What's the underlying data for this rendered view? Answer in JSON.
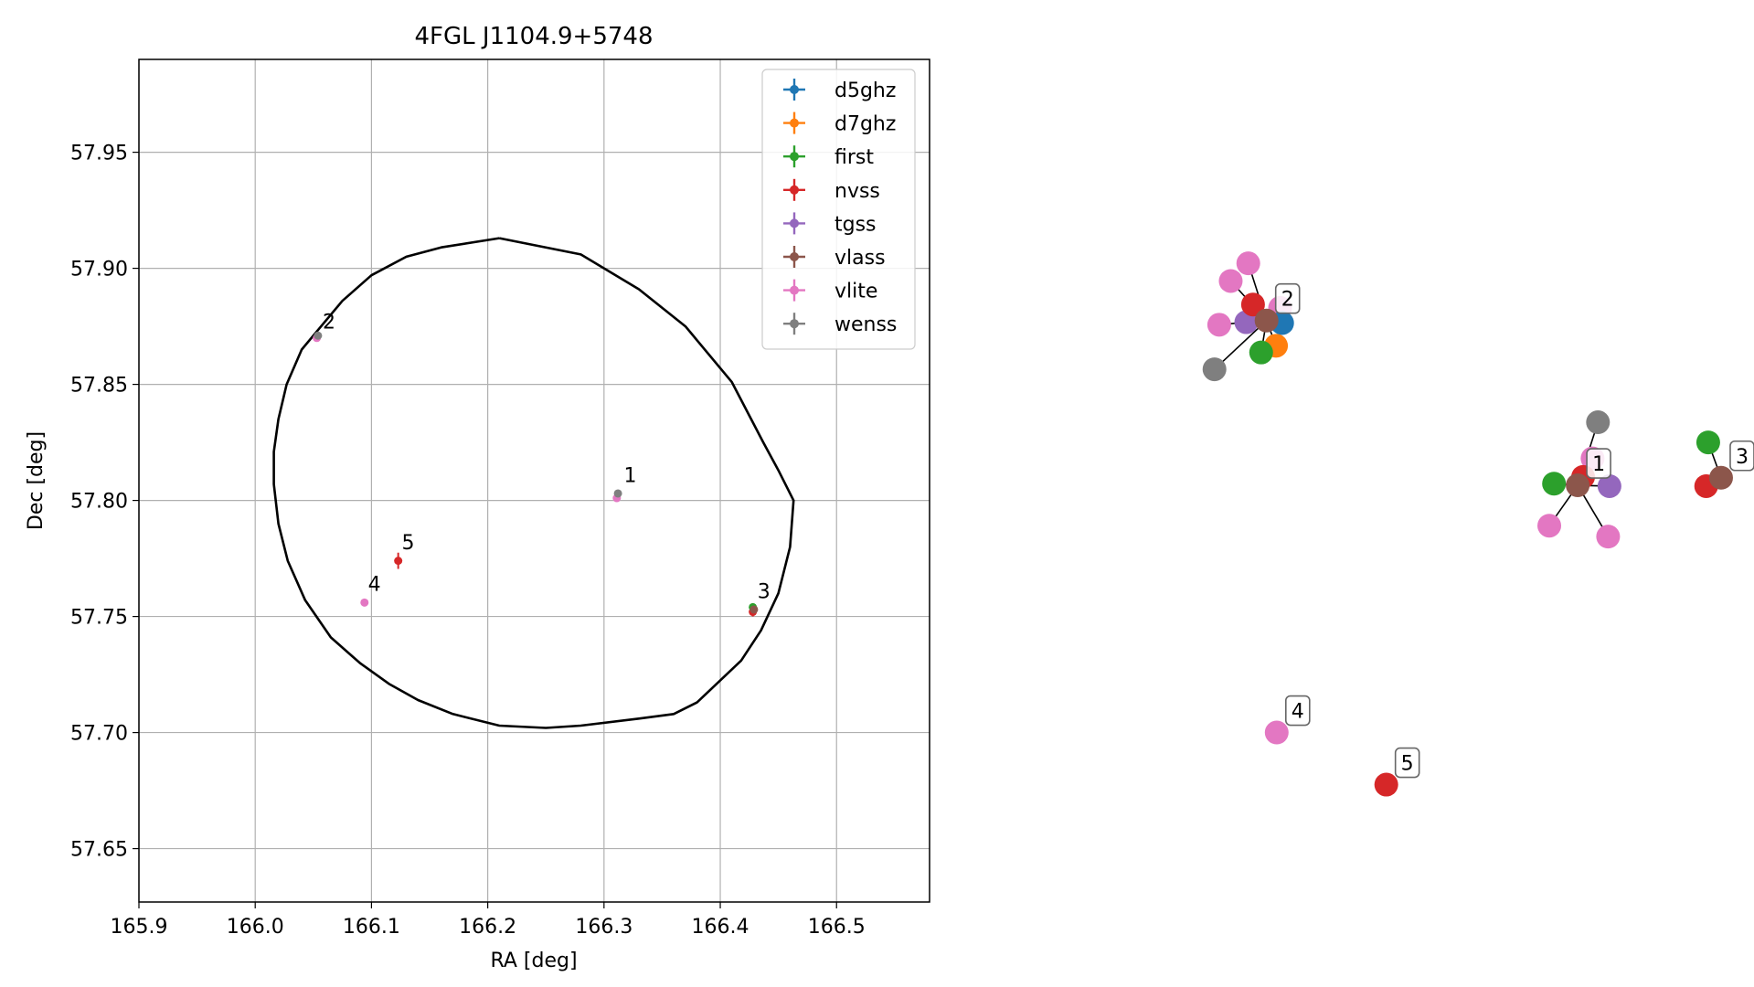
{
  "chart_data": [
    {
      "type": "scatter",
      "title": "4FGL J1104.9+5748",
      "xlabel": "RA [deg]",
      "ylabel": "Dec [deg]",
      "xlim": [
        165.9,
        166.58
      ],
      "ylim": [
        57.627,
        57.99
      ],
      "x_ticks": [
        165.9,
        166.0,
        166.1,
        166.2,
        166.3,
        166.4,
        166.5
      ],
      "x_tick_labels": [
        "165.9",
        "166.0",
        "166.1",
        "166.2",
        "166.3",
        "166.4",
        "166.5"
      ],
      "y_ticks": [
        57.65,
        57.7,
        57.75,
        57.8,
        57.85,
        57.9,
        57.95
      ],
      "y_tick_labels": [
        "57.65",
        "57.70",
        "57.75",
        "57.80",
        "57.85",
        "57.90",
        "57.95"
      ],
      "grid": true,
      "legend_position": "top-right",
      "legend": [
        {
          "name": "d5ghz",
          "color": "#1f77b4"
        },
        {
          "name": "d7ghz",
          "color": "#ff7f0e"
        },
        {
          "name": "first",
          "color": "#2ca02c"
        },
        {
          "name": "nvss",
          "color": "#d62728"
        },
        {
          "name": "tgss",
          "color": "#9467bd"
        },
        {
          "name": "vlass",
          "color": "#8c564b"
        },
        {
          "name": "vlite",
          "color": "#e377c2"
        },
        {
          "name": "wenss",
          "color": "#7f7f7f"
        }
      ],
      "ellipse": [
        [
          166.21,
          57.913
        ],
        [
          166.28,
          57.906
        ],
        [
          166.33,
          57.891
        ],
        [
          166.37,
          57.875
        ],
        [
          166.41,
          57.851
        ],
        [
          166.437,
          57.825
        ],
        [
          166.45,
          57.813
        ],
        [
          166.463,
          57.8
        ],
        [
          166.46,
          57.78
        ],
        [
          166.45,
          57.76
        ],
        [
          166.435,
          57.744
        ],
        [
          166.418,
          57.731
        ],
        [
          166.38,
          57.713
        ],
        [
          166.36,
          57.708
        ],
        [
          166.33,
          57.706
        ],
        [
          166.28,
          57.703
        ],
        [
          166.25,
          57.702
        ],
        [
          166.21,
          57.703
        ],
        [
          166.17,
          57.708
        ],
        [
          166.14,
          57.714
        ],
        [
          166.115,
          57.721
        ],
        [
          166.09,
          57.73
        ],
        [
          166.065,
          57.741
        ],
        [
          166.043,
          57.757
        ],
        [
          166.028,
          57.774
        ],
        [
          166.02,
          57.79
        ],
        [
          166.016,
          57.807
        ],
        [
          166.016,
          57.821
        ],
        [
          166.02,
          57.835
        ],
        [
          166.027,
          57.85
        ],
        [
          166.04,
          57.865
        ],
        [
          166.055,
          57.874
        ],
        [
          166.075,
          57.886
        ],
        [
          166.1,
          57.897
        ],
        [
          166.13,
          57.905
        ],
        [
          166.16,
          57.909
        ],
        [
          166.21,
          57.913
        ]
      ],
      "points": [
        {
          "survey": "vlite",
          "ra": 166.311,
          "dec": 57.801,
          "err_dec": 0.0
        },
        {
          "survey": "wenss",
          "ra": 166.312,
          "dec": 57.803,
          "err_dec": 0.0
        },
        {
          "survey": "vlite",
          "ra": 166.053,
          "dec": 57.87,
          "err_dec": 0.0
        },
        {
          "survey": "wenss",
          "ra": 166.054,
          "dec": 57.871,
          "err_dec": 0.0
        },
        {
          "survey": "nvss",
          "ra": 166.428,
          "dec": 57.752,
          "err_dec": 0.002
        },
        {
          "survey": "first",
          "ra": 166.428,
          "dec": 57.754,
          "err_dec": 0.0
        },
        {
          "survey": "vlass",
          "ra": 166.429,
          "dec": 57.753,
          "err_dec": 0.0
        },
        {
          "survey": "vlite",
          "ra": 166.094,
          "dec": 57.756,
          "err_dec": 0.0
        },
        {
          "survey": "nvss",
          "ra": 166.123,
          "dec": 57.774,
          "err_dec": 0.0035
        }
      ],
      "labels": [
        {
          "text": "1",
          "ra": 166.317,
          "dec": 57.808
        },
        {
          "text": "2",
          "ra": 166.058,
          "dec": 57.874
        },
        {
          "text": "3",
          "ra": 166.432,
          "dec": 57.758
        },
        {
          "text": "4",
          "ra": 166.097,
          "dec": 57.761
        },
        {
          "text": "5",
          "ra": 166.126,
          "dec": 57.779
        }
      ]
    },
    {
      "type": "network",
      "groups": [
        {
          "label": "2",
          "center": {
            "survey": "vlass",
            "x": 0.305,
            "y": 0.316
          },
          "nodes": [
            {
              "survey": "vlite",
              "x": 0.278,
              "y": 0.248
            },
            {
              "survey": "vlite",
              "x": 0.252,
              "y": 0.269
            },
            {
              "survey": "vlite",
              "x": 0.235,
              "y": 0.321
            },
            {
              "survey": "wenss",
              "x": 0.228,
              "y": 0.374
            },
            {
              "survey": "tgss",
              "x": 0.275,
              "y": 0.318
            },
            {
              "survey": "nvss",
              "x": 0.285,
              "y": 0.297
            },
            {
              "survey": "vlite",
              "x": 0.325,
              "y": 0.301
            },
            {
              "survey": "d5ghz",
              "x": 0.328,
              "y": 0.319
            },
            {
              "survey": "d7ghz",
              "x": 0.319,
              "y": 0.346
            },
            {
              "survey": "first",
              "x": 0.297,
              "y": 0.354
            }
          ]
        },
        {
          "label": "1",
          "center": {
            "survey": "vlass",
            "x": 0.765,
            "y": 0.512
          },
          "nodes": [
            {
              "survey": "wenss",
              "x": 0.795,
              "y": 0.437
            },
            {
              "survey": "vlite",
              "x": 0.787,
              "y": 0.48
            },
            {
              "survey": "nvss",
              "x": 0.773,
              "y": 0.502
            },
            {
              "survey": "first",
              "x": 0.73,
              "y": 0.51
            },
            {
              "survey": "tgss",
              "x": 0.812,
              "y": 0.513
            },
            {
              "survey": "vlite",
              "x": 0.723,
              "y": 0.56
            },
            {
              "survey": "vlite",
              "x": 0.81,
              "y": 0.573
            }
          ]
        },
        {
          "label": "3",
          "center": {
            "survey": "vlass",
            "x": 0.977,
            "y": 0.503
          },
          "nodes": [
            {
              "survey": "first",
              "x": 0.958,
              "y": 0.461
            },
            {
              "survey": "nvss",
              "x": 0.955,
              "y": 0.513
            }
          ]
        },
        {
          "label": "4",
          "center": {
            "survey": "vlite",
            "x": 0.32,
            "y": 0.806
          },
          "nodes": []
        },
        {
          "label": "5",
          "center": {
            "survey": "nvss",
            "x": 0.482,
            "y": 0.868
          },
          "nodes": []
        }
      ]
    }
  ]
}
